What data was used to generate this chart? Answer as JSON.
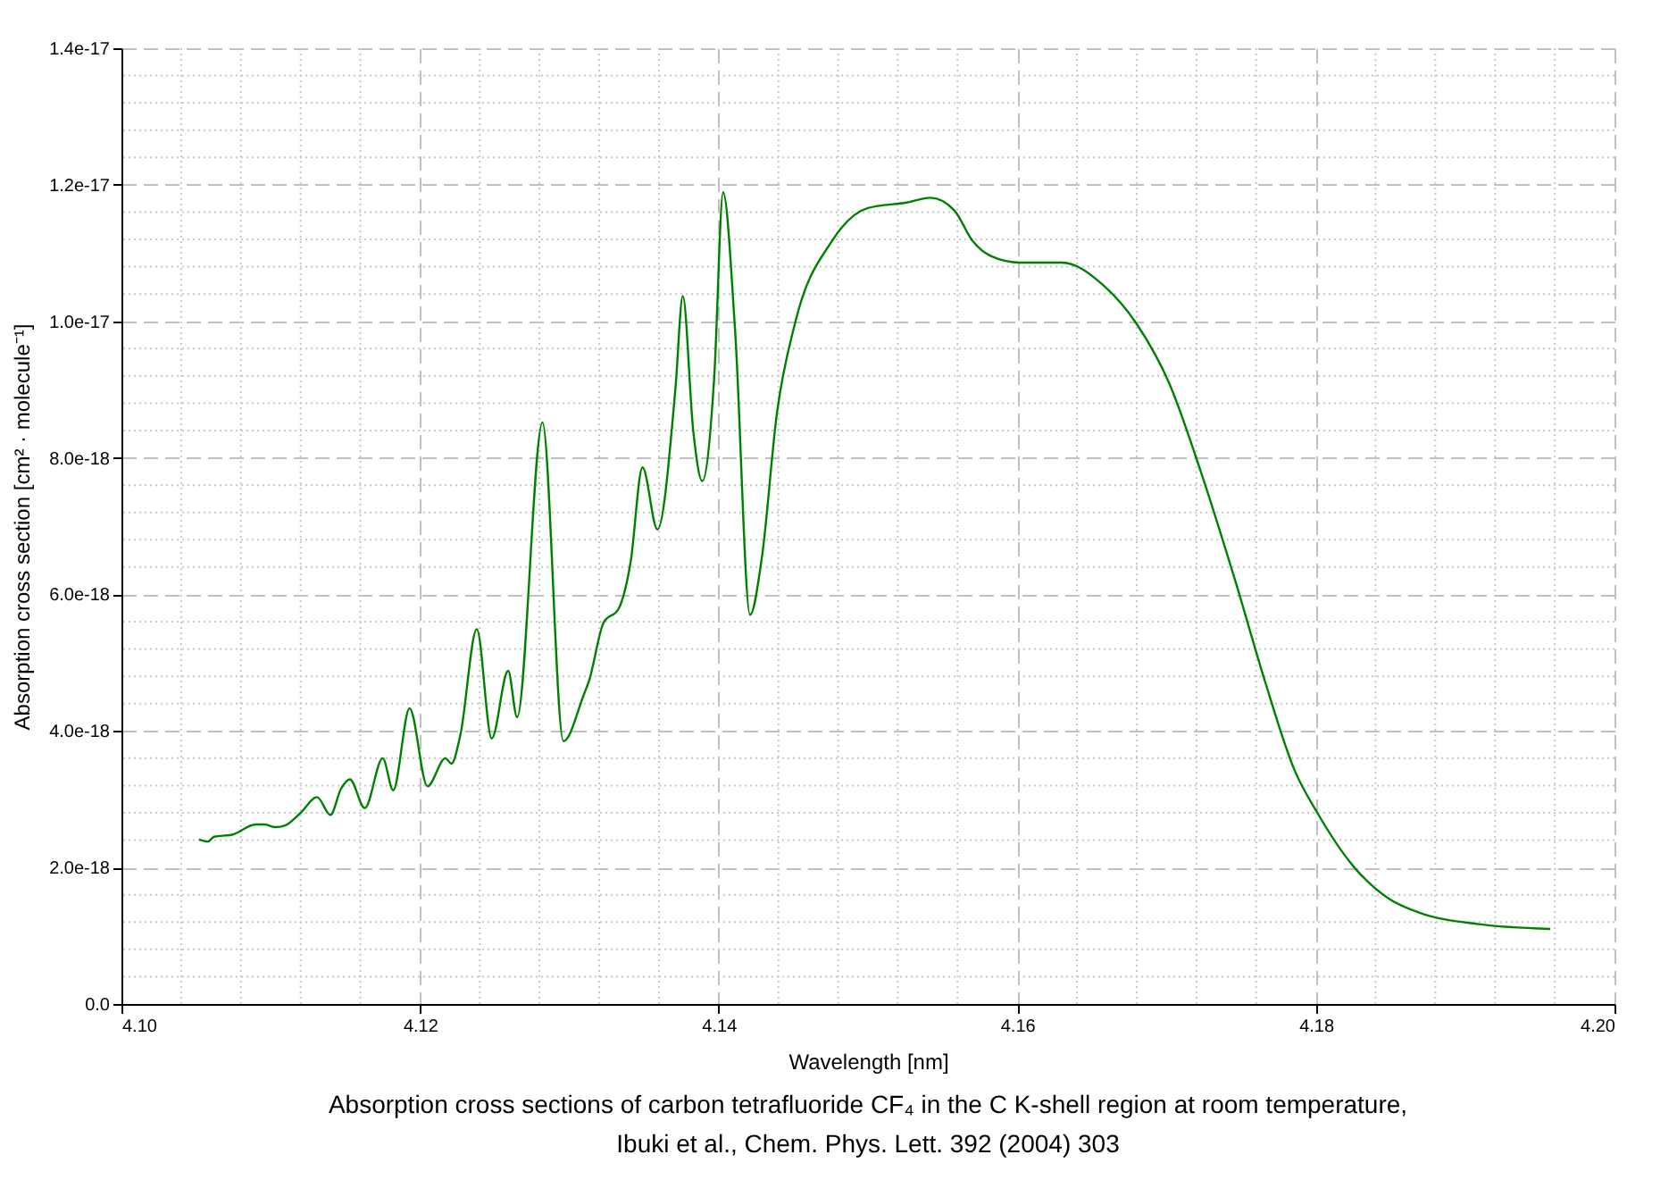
{
  "chart_data": {
    "type": "line",
    "xlabel": "Wavelength [nm]",
    "ylabel": "Absorption cross section [cm² · molecule⁻¹]",
    "annotations": [
      "Absorption cross sections of carbon tetrafluoride CF₄ in the C K-shell region at room temperature,",
      "Ibuki et al., Chem. Phys. Lett. 392 (2004) 303"
    ],
    "x": [
      4.1052,
      4.1058,
      4.1062,
      4.1074,
      4.109,
      4.1096,
      4.1103,
      4.111,
      4.112,
      4.1131,
      4.114,
      4.1147,
      4.1153,
      4.1163,
      4.1175,
      4.1182,
      4.1193,
      4.1205,
      4.1217,
      4.1221,
      4.1227,
      4.1238,
      4.1248,
      4.1259,
      4.1265,
      4.1282,
      4.1296,
      4.131,
      4.1313,
      4.1323,
      4.1333,
      4.1341,
      4.1349,
      4.1359,
      4.1371,
      4.1376,
      4.1383,
      4.1389,
      4.1397,
      4.1403,
      4.1411,
      4.1421,
      4.1429,
      4.1439,
      4.1451,
      4.1476,
      4.15,
      4.1526,
      4.1542,
      4.1558,
      4.157,
      4.1582,
      4.1602,
      4.163,
      4.1658,
      4.168,
      4.1702,
      4.1722,
      4.1746,
      4.1766,
      4.1786,
      4.1801,
      4.1825,
      4.1849,
      4.1869,
      4.1909,
      4.1957
    ],
    "series": [
      {
        "color": "#008000",
        "values": [
          2.41e-18,
          2.38e-18,
          2.45e-18,
          2.48e-18,
          2.63e-18,
          2.63e-18,
          2.59e-18,
          2.62e-18,
          2.8e-18,
          3.03e-18,
          2.77e-18,
          3.15e-18,
          3.29e-18,
          2.87e-18,
          3.6e-18,
          3.13e-18,
          4.33e-18,
          3.19e-18,
          3.6e-18,
          3.52e-18,
          3.94e-18,
          5.49e-18,
          3.89e-18,
          4.88e-18,
          4.2e-18,
          8.52e-18,
          3.85e-18,
          4.55e-18,
          4.72e-18,
          5.59e-18,
          5.79e-18,
          6.47e-18,
          7.86e-18,
          6.95e-18,
          9e-18,
          1.037e-17,
          8.39e-18,
          7.66e-18,
          9.17e-18,
          1.189e-17,
          9.87e-18,
          5.7e-18,
          6.55e-18,
          8.65e-18,
          9.96e-18,
          1.118e-17,
          1.166e-17,
          1.174e-17,
          1.181e-17,
          1.162e-17,
          1.118e-17,
          1.096e-17,
          1.086e-17,
          1.086e-17,
          1.052e-17,
          9.96e-18,
          9.08e-18,
          7.86e-18,
          6.2e-18,
          4.72e-18,
          3.41e-18,
          2.8e-18,
          2.02e-18,
          1.54e-18,
          1.34e-18,
          1.17e-18,
          1.1e-18
        ]
      }
    ],
    "xlim": [
      4.1,
      4.2
    ],
    "xticks": [
      {
        "value": 4.1,
        "label": "4.10"
      },
      {
        "value": 4.12,
        "label": "4.12"
      },
      {
        "value": 4.14,
        "label": "4.14"
      },
      {
        "value": 4.16,
        "label": "4.16"
      },
      {
        "value": 4.18,
        "label": "4.18"
      },
      {
        "value": 4.2,
        "label": "4.20"
      }
    ],
    "ylim": [
      0,
      1.4e-17
    ],
    "yticks": [
      {
        "value": 0,
        "label": "0.0"
      },
      {
        "value": 2e-18,
        "label": "2.0e-18"
      },
      {
        "value": 4e-18,
        "label": "4.0e-18"
      },
      {
        "value": 6e-18,
        "label": "6.0e-18"
      },
      {
        "value": 8e-18,
        "label": "8.0e-18"
      },
      {
        "value": 1e-17,
        "label": "1.0e-17"
      },
      {
        "value": 1.2e-17,
        "label": "1.2e-17"
      },
      {
        "value": 1.4e-17,
        "label": "1.4e-17"
      }
    ],
    "grid": true,
    "marker": "none",
    "line_style": "solid"
  }
}
